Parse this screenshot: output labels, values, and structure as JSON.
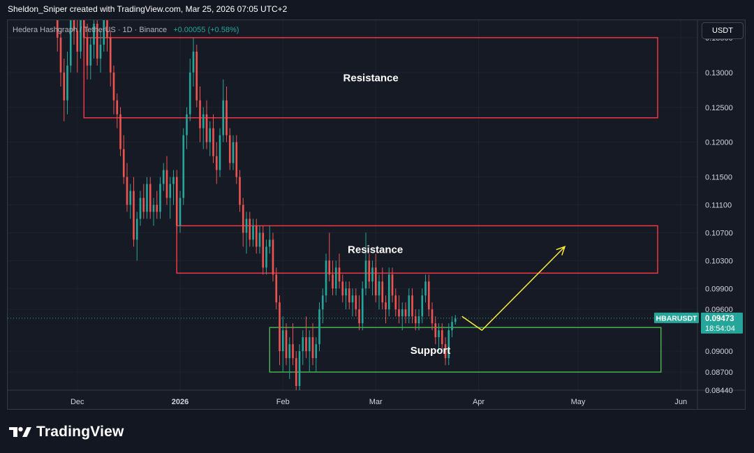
{
  "header": {
    "credit": "Sheldon_Sniper created with TradingView.com, Mar 25, 2026 07:05 UTC+2"
  },
  "legend": {
    "symbol": "Hedera Hashgraph / TetherUS · 1D · Binance",
    "change": "+0.00055 (+0.58%)"
  },
  "currency_button": "USDT",
  "price_label": {
    "ticker": "HBARUSDT",
    "price": "0.09473",
    "countdown": "18:54:04"
  },
  "brand": {
    "name": "TradingView"
  },
  "colors": {
    "up": "#26a69a",
    "down": "#ef5350",
    "resistance": "#f23645",
    "support": "#4caf50",
    "arrow": "#ffeb3b"
  },
  "chart_data": {
    "type": "candlestick",
    "symbol": "HBARUSDT",
    "x_range": [
      "2025-11-10",
      "2026-06-06"
    ],
    "y_range": [
      0.0844,
      0.1375
    ],
    "y_ticks": [
      "0.13500",
      "0.13000",
      "0.12500",
      "0.12000",
      "0.11500",
      "0.11100",
      "0.10700",
      "0.10300",
      "0.09900",
      "0.09600",
      "0.09000",
      "0.08700",
      "0.08440"
    ],
    "x_ticks": [
      {
        "label": "Dec",
        "date": "2025-12-01"
      },
      {
        "label": "2026",
        "date": "2026-01-01"
      },
      {
        "label": "Feb",
        "date": "2026-02-01"
      },
      {
        "label": "Mar",
        "date": "2026-03-01"
      },
      {
        "label": "Apr",
        "date": "2026-04-01"
      },
      {
        "label": "May",
        "date": "2026-05-01"
      },
      {
        "label": "Jun",
        "date": "2026-06-01"
      }
    ],
    "last_price": 0.09473,
    "zones": [
      {
        "label": "Resistance",
        "kind": "resistance",
        "from": "2025-12-03",
        "to": "2026-05-25",
        "low": 0.1235,
        "high": 0.135
      },
      {
        "label": "Resistance",
        "kind": "resistance",
        "from": "2025-12-31",
        "to": "2026-05-25",
        "low": 0.1012,
        "high": 0.108
      },
      {
        "label": "Support",
        "kind": "support",
        "from": "2026-01-28",
        "to": "2026-05-26",
        "low": 0.087,
        "high": 0.0934
      }
    ],
    "projection": [
      {
        "date": "2026-03-27",
        "price": 0.095
      },
      {
        "date": "2026-04-02",
        "price": 0.093
      },
      {
        "date": "2026-04-27",
        "price": 0.105
      }
    ],
    "candles": [
      {
        "d": "2025-11-25",
        "o": 0.139,
        "h": 0.141,
        "l": 0.133,
        "c": 0.135
      },
      {
        "d": "2025-11-26",
        "o": 0.135,
        "h": 0.136,
        "l": 0.128,
        "c": 0.13
      },
      {
        "d": "2025-11-27",
        "o": 0.13,
        "h": 0.132,
        "l": 0.123,
        "c": 0.126
      },
      {
        "d": "2025-11-28",
        "o": 0.126,
        "h": 0.133,
        "l": 0.124,
        "c": 0.131
      },
      {
        "d": "2025-11-29",
        "o": 0.131,
        "h": 0.14,
        "l": 0.13,
        "c": 0.138
      },
      {
        "d": "2025-11-30",
        "o": 0.138,
        "h": 0.141,
        "l": 0.134,
        "c": 0.136
      },
      {
        "d": "2025-12-01",
        "o": 0.136,
        "h": 0.139,
        "l": 0.13,
        "c": 0.133
      },
      {
        "d": "2025-12-02",
        "o": 0.133,
        "h": 0.14,
        "l": 0.132,
        "c": 0.139
      },
      {
        "d": "2025-12-03",
        "o": 0.139,
        "h": 0.141,
        "l": 0.134,
        "c": 0.135
      },
      {
        "d": "2025-12-04",
        "o": 0.135,
        "h": 0.137,
        "l": 0.129,
        "c": 0.131
      },
      {
        "d": "2025-12-05",
        "o": 0.131,
        "h": 0.135,
        "l": 0.129,
        "c": 0.134
      },
      {
        "d": "2025-12-06",
        "o": 0.134,
        "h": 0.139,
        "l": 0.132,
        "c": 0.137
      },
      {
        "d": "2025-12-07",
        "o": 0.137,
        "h": 0.138,
        "l": 0.131,
        "c": 0.132
      },
      {
        "d": "2025-12-08",
        "o": 0.132,
        "h": 0.136,
        "l": 0.13,
        "c": 0.134
      },
      {
        "d": "2025-12-09",
        "o": 0.134,
        "h": 0.139,
        "l": 0.133,
        "c": 0.138
      },
      {
        "d": "2025-12-10",
        "o": 0.138,
        "h": 0.139,
        "l": 0.133,
        "c": 0.135
      },
      {
        "d": "2025-12-11",
        "o": 0.135,
        "h": 0.136,
        "l": 0.128,
        "c": 0.13
      },
      {
        "d": "2025-12-12",
        "o": 0.13,
        "h": 0.131,
        "l": 0.124,
        "c": 0.126
      },
      {
        "d": "2025-12-13",
        "o": 0.126,
        "h": 0.127,
        "l": 0.122,
        "c": 0.124
      },
      {
        "d": "2025-12-14",
        "o": 0.124,
        "h": 0.125,
        "l": 0.118,
        "c": 0.119
      },
      {
        "d": "2025-12-15",
        "o": 0.119,
        "h": 0.121,
        "l": 0.114,
        "c": 0.115
      },
      {
        "d": "2025-12-16",
        "o": 0.115,
        "h": 0.117,
        "l": 0.11,
        "c": 0.111
      },
      {
        "d": "2025-12-17",
        "o": 0.111,
        "h": 0.114,
        "l": 0.109,
        "c": 0.113
      },
      {
        "d": "2025-12-18",
        "o": 0.113,
        "h": 0.115,
        "l": 0.105,
        "c": 0.106
      },
      {
        "d": "2025-12-19",
        "o": 0.106,
        "h": 0.11,
        "l": 0.103,
        "c": 0.109
      },
      {
        "d": "2025-12-20",
        "o": 0.109,
        "h": 0.113,
        "l": 0.108,
        "c": 0.112
      },
      {
        "d": "2025-12-21",
        "o": 0.112,
        "h": 0.114,
        "l": 0.109,
        "c": 0.11
      },
      {
        "d": "2025-12-22",
        "o": 0.11,
        "h": 0.115,
        "l": 0.109,
        "c": 0.114
      },
      {
        "d": "2025-12-23",
        "o": 0.114,
        "h": 0.115,
        "l": 0.109,
        "c": 0.11
      },
      {
        "d": "2025-12-24",
        "o": 0.11,
        "h": 0.112,
        "l": 0.108,
        "c": 0.111
      },
      {
        "d": "2025-12-25",
        "o": 0.111,
        "h": 0.113,
        "l": 0.109,
        "c": 0.11
      },
      {
        "d": "2025-12-26",
        "o": 0.11,
        "h": 0.115,
        "l": 0.109,
        "c": 0.114
      },
      {
        "d": "2025-12-27",
        "o": 0.114,
        "h": 0.117,
        "l": 0.113,
        "c": 0.116
      },
      {
        "d": "2025-12-28",
        "o": 0.116,
        "h": 0.118,
        "l": 0.111,
        "c": 0.112
      },
      {
        "d": "2025-12-29",
        "o": 0.112,
        "h": 0.115,
        "l": 0.109,
        "c": 0.114
      },
      {
        "d": "2025-12-30",
        "o": 0.114,
        "h": 0.116,
        "l": 0.111,
        "c": 0.115
      },
      {
        "d": "2025-12-31",
        "o": 0.115,
        "h": 0.116,
        "l": 0.107,
        "c": 0.108
      },
      {
        "d": "2026-01-01",
        "o": 0.108,
        "h": 0.113,
        "l": 0.107,
        "c": 0.112
      },
      {
        "d": "2026-01-02",
        "o": 0.112,
        "h": 0.122,
        "l": 0.111,
        "c": 0.121
      },
      {
        "d": "2026-01-03",
        "o": 0.121,
        "h": 0.125,
        "l": 0.119,
        "c": 0.124
      },
      {
        "d": "2026-01-04",
        "o": 0.124,
        "h": 0.132,
        "l": 0.123,
        "c": 0.13
      },
      {
        "d": "2026-01-05",
        "o": 0.13,
        "h": 0.135,
        "l": 0.128,
        "c": 0.133
      },
      {
        "d": "2026-01-06",
        "o": 0.133,
        "h": 0.134,
        "l": 0.125,
        "c": 0.126
      },
      {
        "d": "2026-01-07",
        "o": 0.126,
        "h": 0.128,
        "l": 0.12,
        "c": 0.122
      },
      {
        "d": "2026-01-08",
        "o": 0.122,
        "h": 0.125,
        "l": 0.119,
        "c": 0.124
      },
      {
        "d": "2026-01-09",
        "o": 0.124,
        "h": 0.126,
        "l": 0.119,
        "c": 0.12
      },
      {
        "d": "2026-01-10",
        "o": 0.12,
        "h": 0.123,
        "l": 0.118,
        "c": 0.122
      },
      {
        "d": "2026-01-11",
        "o": 0.122,
        "h": 0.124,
        "l": 0.117,
        "c": 0.118
      },
      {
        "d": "2026-01-12",
        "o": 0.118,
        "h": 0.12,
        "l": 0.114,
        "c": 0.116
      },
      {
        "d": "2026-01-13",
        "o": 0.116,
        "h": 0.122,
        "l": 0.115,
        "c": 0.121
      },
      {
        "d": "2026-01-14",
        "o": 0.121,
        "h": 0.129,
        "l": 0.12,
        "c": 0.126
      },
      {
        "d": "2026-01-15",
        "o": 0.126,
        "h": 0.128,
        "l": 0.12,
        "c": 0.121
      },
      {
        "d": "2026-01-16",
        "o": 0.121,
        "h": 0.122,
        "l": 0.116,
        "c": 0.117
      },
      {
        "d": "2026-01-17",
        "o": 0.117,
        "h": 0.121,
        "l": 0.116,
        "c": 0.12
      },
      {
        "d": "2026-01-18",
        "o": 0.12,
        "h": 0.121,
        "l": 0.114,
        "c": 0.115
      },
      {
        "d": "2026-01-19",
        "o": 0.115,
        "h": 0.116,
        "l": 0.11,
        "c": 0.111
      },
      {
        "d": "2026-01-20",
        "o": 0.111,
        "h": 0.112,
        "l": 0.105,
        "c": 0.107
      },
      {
        "d": "2026-01-21",
        "o": 0.107,
        "h": 0.11,
        "l": 0.104,
        "c": 0.109
      },
      {
        "d": "2026-01-22",
        "o": 0.109,
        "h": 0.11,
        "l": 0.105,
        "c": 0.106
      },
      {
        "d": "2026-01-23",
        "o": 0.106,
        "h": 0.109,
        "l": 0.105,
        "c": 0.108
      },
      {
        "d": "2026-01-24",
        "o": 0.108,
        "h": 0.109,
        "l": 0.104,
        "c": 0.105
      },
      {
        "d": "2026-01-25",
        "o": 0.105,
        "h": 0.108,
        "l": 0.104,
        "c": 0.107
      },
      {
        "d": "2026-01-26",
        "o": 0.107,
        "h": 0.108,
        "l": 0.101,
        "c": 0.102
      },
      {
        "d": "2026-01-27",
        "o": 0.102,
        "h": 0.106,
        "l": 0.101,
        "c": 0.105
      },
      {
        "d": "2026-01-28",
        "o": 0.105,
        "h": 0.108,
        "l": 0.104,
        "c": 0.106
      },
      {
        "d": "2026-01-29",
        "o": 0.106,
        "h": 0.107,
        "l": 0.1,
        "c": 0.101
      },
      {
        "d": "2026-01-30",
        "o": 0.101,
        "h": 0.102,
        "l": 0.096,
        "c": 0.097
      },
      {
        "d": "2026-01-31",
        "o": 0.097,
        "h": 0.098,
        "l": 0.088,
        "c": 0.09
      },
      {
        "d": "2026-02-01",
        "o": 0.09,
        "h": 0.095,
        "l": 0.087,
        "c": 0.093
      },
      {
        "d": "2026-02-02",
        "o": 0.093,
        "h": 0.094,
        "l": 0.088,
        "c": 0.089
      },
      {
        "d": "2026-02-03",
        "o": 0.089,
        "h": 0.092,
        "l": 0.086,
        "c": 0.091
      },
      {
        "d": "2026-02-04",
        "o": 0.091,
        "h": 0.094,
        "l": 0.088,
        "c": 0.089
      },
      {
        "d": "2026-02-05",
        "o": 0.089,
        "h": 0.09,
        "l": 0.083,
        "c": 0.085
      },
      {
        "d": "2026-02-06",
        "o": 0.085,
        "h": 0.091,
        "l": 0.084,
        "c": 0.09
      },
      {
        "d": "2026-02-07",
        "o": 0.09,
        "h": 0.093,
        "l": 0.088,
        "c": 0.092
      },
      {
        "d": "2026-02-08",
        "o": 0.092,
        "h": 0.095,
        "l": 0.089,
        "c": 0.09
      },
      {
        "d": "2026-02-09",
        "o": 0.09,
        "h": 0.093,
        "l": 0.087,
        "c": 0.092
      },
      {
        "d": "2026-02-10",
        "o": 0.092,
        "h": 0.094,
        "l": 0.088,
        "c": 0.089
      },
      {
        "d": "2026-02-11",
        "o": 0.089,
        "h": 0.092,
        "l": 0.087,
        "c": 0.091
      },
      {
        "d": "2026-02-12",
        "o": 0.091,
        "h": 0.097,
        "l": 0.09,
        "c": 0.096
      },
      {
        "d": "2026-02-13",
        "o": 0.096,
        "h": 0.099,
        "l": 0.094,
        "c": 0.098
      },
      {
        "d": "2026-02-14",
        "o": 0.098,
        "h": 0.104,
        "l": 0.097,
        "c": 0.103
      },
      {
        "d": "2026-02-15",
        "o": 0.103,
        "h": 0.107,
        "l": 0.1,
        "c": 0.101
      },
      {
        "d": "2026-02-16",
        "o": 0.101,
        "h": 0.103,
        "l": 0.098,
        "c": 0.099
      },
      {
        "d": "2026-02-17",
        "o": 0.099,
        "h": 0.103,
        "l": 0.098,
        "c": 0.102
      },
      {
        "d": "2026-02-18",
        "o": 0.102,
        "h": 0.104,
        "l": 0.099,
        "c": 0.1
      },
      {
        "d": "2026-02-19",
        "o": 0.1,
        "h": 0.101,
        "l": 0.097,
        "c": 0.098
      },
      {
        "d": "2026-02-20",
        "o": 0.098,
        "h": 0.1,
        "l": 0.096,
        "c": 0.099
      },
      {
        "d": "2026-02-21",
        "o": 0.099,
        "h": 0.1,
        "l": 0.096,
        "c": 0.097
      },
      {
        "d": "2026-02-22",
        "o": 0.097,
        "h": 0.099,
        "l": 0.095,
        "c": 0.098
      },
      {
        "d": "2026-02-23",
        "o": 0.098,
        "h": 0.099,
        "l": 0.095,
        "c": 0.096
      },
      {
        "d": "2026-02-24",
        "o": 0.096,
        "h": 0.098,
        "l": 0.093,
        "c": 0.094
      },
      {
        "d": "2026-02-25",
        "o": 0.094,
        "h": 0.1,
        "l": 0.093,
        "c": 0.099
      },
      {
        "d": "2026-02-26",
        "o": 0.099,
        "h": 0.107,
        "l": 0.098,
        "c": 0.103
      },
      {
        "d": "2026-02-27",
        "o": 0.103,
        "h": 0.104,
        "l": 0.099,
        "c": 0.1
      },
      {
        "d": "2026-02-28",
        "o": 0.1,
        "h": 0.103,
        "l": 0.098,
        "c": 0.102
      },
      {
        "d": "2026-03-01",
        "o": 0.102,
        "h": 0.104,
        "l": 0.097,
        "c": 0.098
      },
      {
        "d": "2026-03-02",
        "o": 0.098,
        "h": 0.101,
        "l": 0.096,
        "c": 0.1
      },
      {
        "d": "2026-03-03",
        "o": 0.1,
        "h": 0.102,
        "l": 0.096,
        "c": 0.097
      },
      {
        "d": "2026-03-04",
        "o": 0.097,
        "h": 0.098,
        "l": 0.094,
        "c": 0.096
      },
      {
        "d": "2026-03-05",
        "o": 0.096,
        "h": 0.102,
        "l": 0.095,
        "c": 0.101
      },
      {
        "d": "2026-03-06",
        "o": 0.101,
        "h": 0.102,
        "l": 0.097,
        "c": 0.098
      },
      {
        "d": "2026-03-07",
        "o": 0.098,
        "h": 0.099,
        "l": 0.095,
        "c": 0.096
      },
      {
        "d": "2026-03-08",
        "o": 0.096,
        "h": 0.098,
        "l": 0.094,
        "c": 0.095
      },
      {
        "d": "2026-03-09",
        "o": 0.095,
        "h": 0.097,
        "l": 0.093,
        "c": 0.096
      },
      {
        "d": "2026-03-10",
        "o": 0.096,
        "h": 0.097,
        "l": 0.094,
        "c": 0.095
      },
      {
        "d": "2026-03-11",
        "o": 0.095,
        "h": 0.099,
        "l": 0.094,
        "c": 0.098
      },
      {
        "d": "2026-03-12",
        "o": 0.098,
        "h": 0.099,
        "l": 0.094,
        "c": 0.095
      },
      {
        "d": "2026-03-13",
        "o": 0.095,
        "h": 0.096,
        "l": 0.093,
        "c": 0.094
      },
      {
        "d": "2026-03-14",
        "o": 0.094,
        "h": 0.096,
        "l": 0.093,
        "c": 0.095
      },
      {
        "d": "2026-03-15",
        "o": 0.095,
        "h": 0.099,
        "l": 0.094,
        "c": 0.098
      },
      {
        "d": "2026-03-16",
        "o": 0.098,
        "h": 0.101,
        "l": 0.097,
        "c": 0.1
      },
      {
        "d": "2026-03-17",
        "o": 0.1,
        "h": 0.101,
        "l": 0.095,
        "c": 0.096
      },
      {
        "d": "2026-03-18",
        "o": 0.096,
        "h": 0.097,
        "l": 0.093,
        "c": 0.094
      },
      {
        "d": "2026-03-19",
        "o": 0.094,
        "h": 0.095,
        "l": 0.091,
        "c": 0.092
      },
      {
        "d": "2026-03-20",
        "o": 0.092,
        "h": 0.094,
        "l": 0.09,
        "c": 0.093
      },
      {
        "d": "2026-03-21",
        "o": 0.093,
        "h": 0.094,
        "l": 0.09,
        "c": 0.091
      },
      {
        "d": "2026-03-22",
        "o": 0.091,
        "h": 0.092,
        "l": 0.088,
        "c": 0.089
      },
      {
        "d": "2026-03-23",
        "o": 0.089,
        "h": 0.094,
        "l": 0.088,
        "c": 0.093
      },
      {
        "d": "2026-03-24",
        "o": 0.093,
        "h": 0.095,
        "l": 0.092,
        "c": 0.0942
      },
      {
        "d": "2026-03-25",
        "o": 0.0942,
        "h": 0.0952,
        "l": 0.0938,
        "c": 0.0947
      }
    ]
  }
}
